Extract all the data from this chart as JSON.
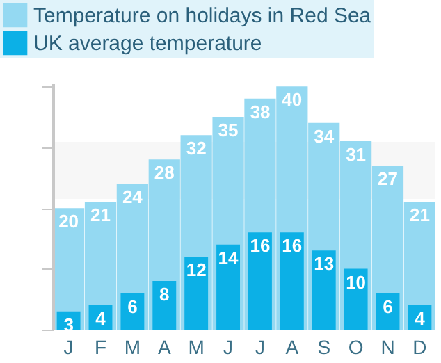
{
  "chart_data": {
    "type": "bar",
    "categories": [
      "J",
      "F",
      "M",
      "A",
      "M",
      "J",
      "J",
      "A",
      "S",
      "O",
      "N",
      "D"
    ],
    "series": [
      {
        "name": "Temperature on holidays in Red Sea",
        "color": "#94d9f2",
        "values": [
          20,
          21,
          24,
          28,
          32,
          35,
          38,
          40,
          34,
          31,
          27,
          21
        ]
      },
      {
        "name": "UK average temperature",
        "color": "#0cb0e6",
        "values": [
          3,
          4,
          6,
          8,
          12,
          14,
          16,
          16,
          13,
          10,
          6,
          4
        ]
      }
    ],
    "ylim": [
      0,
      40.5
    ],
    "bands": [
      {
        "axis": "y",
        "from": 21.5,
        "to": 30.9,
        "color": "#f7f7f7"
      }
    ],
    "data_labels": true,
    "legend": "top left"
  }
}
